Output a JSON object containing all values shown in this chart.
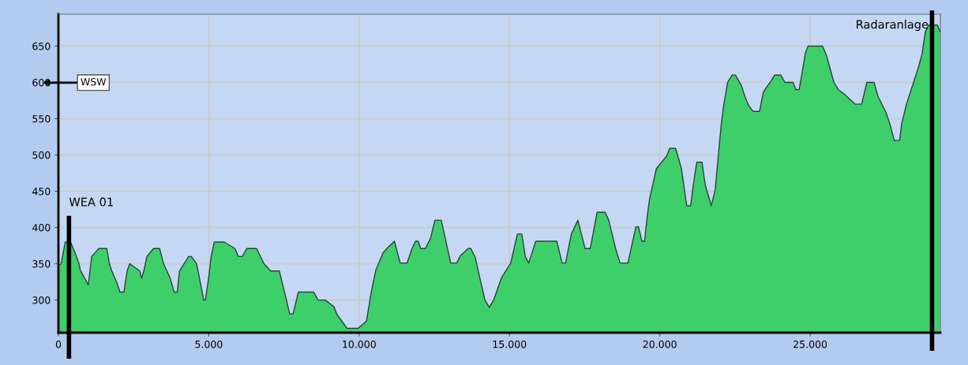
{
  "chart_data": {
    "type": "area",
    "x": [
      0,
      88,
      228,
      404,
      554,
      685,
      729,
      993,
      1107,
      1344,
      1608,
      1696,
      1766,
      1960,
      2047,
      2179,
      2285,
      2372,
      2706,
      2768,
      2838,
      2944,
      3163,
      3365,
      3497,
      3717,
      3849,
      3954,
      4024,
      4332,
      4420,
      4596,
      4833,
      4886,
      4991,
      5079,
      5184,
      5518,
      5870,
      5984,
      6116,
      6265,
      6590,
      6836,
      7056,
      7346,
      7583,
      7689,
      7803,
      7979,
      8488,
      8634,
      8870,
      9159,
      9264,
      9597,
      9965,
      10245,
      10403,
      10560,
      10797,
      10946,
      11173,
      11366,
      11594,
      11760,
      11874,
      11962,
      12049,
      12207,
      12373,
      12522,
      12732,
      13047,
      13249,
      13363,
      13625,
      13713,
      13862,
      14011,
      14186,
      14326,
      14475,
      14738,
      15044,
      15263,
      15412,
      15526,
      15639,
      15876,
      16576,
      16751,
      16865,
      17058,
      17277,
      17513,
      17688,
      17916,
      18178,
      18301,
      18528,
      18677,
      18940,
      19204,
      19291,
      19405,
      19492,
      19596,
      19667,
      19886,
      20018,
      20237,
      20325,
      20526,
      20719,
      20895,
      21026,
      21114,
      21228,
      21404,
      21509,
      21711,
      21842,
      22035,
      22123,
      22254,
      22403,
      22517,
      22719,
      22842,
      22956,
      23105,
      23316,
      23439,
      23544,
      23684,
      23816,
      24026,
      24158,
      24430,
      24526,
      24632,
      24711,
      24842,
      24930,
      25412,
      25544,
      25789,
      25938,
      26158,
      26491,
      26711,
      26886,
      27123,
      27254,
      27517,
      27649,
      27798,
      27974,
      28044,
      28202,
      28588,
      28719,
      28833,
      28947,
      29228,
      29316
    ],
    "series": [
      {
        "color": "#3ecf6a",
        "values": [
          347,
          350,
          380,
          380,
          365,
          350,
          341,
          321,
          360,
          371,
          371,
          350,
          341,
          322,
          311,
          311,
          340,
          350,
          340,
          330,
          340,
          360,
          371,
          371,
          350,
          330,
          311,
          311,
          340,
          360,
          360,
          350,
          300,
          300,
          329,
          360,
          380,
          380,
          371,
          360,
          360,
          371,
          371,
          350,
          340,
          340,
          300,
          281,
          281,
          311,
          311,
          300,
          300,
          291,
          280,
          261,
          261,
          271,
          311,
          342,
          365,
          372,
          381,
          351,
          351,
          371,
          381,
          381,
          371,
          371,
          385,
          410,
          410,
          351,
          351,
          361,
          371,
          371,
          359,
          331,
          300,
          290,
          300,
          331,
          351,
          391,
          391,
          360,
          351,
          381,
          381,
          351,
          351,
          391,
          410,
          371,
          371,
          421,
          421,
          410,
          371,
          351,
          351,
          401,
          401,
          381,
          381,
          420,
          441,
          481,
          488,
          499,
          509,
          509,
          481,
          430,
          430,
          459,
          490,
          490,
          459,
          430,
          452,
          539,
          568,
          600,
          610,
          610,
          595,
          579,
          568,
          560,
          560,
          586,
          593,
          601,
          610,
          610,
          600,
          600,
          590,
          590,
          608,
          641,
          650,
          650,
          637,
          600,
          590,
          583,
          570,
          570,
          600,
          600,
          581,
          559,
          543,
          520,
          520,
          543,
          570,
          619,
          639,
          670,
          679,
          679,
          670
        ]
      }
    ],
    "xlim": [
      0,
      29330
    ],
    "ylim": [
      255,
      694
    ],
    "xticks": [
      0,
      {
        "value": 5000,
        "label": "5.000"
      },
      {
        "value": 10000,
        "label": "10.000"
      },
      {
        "value": 15000,
        "label": "15.000"
      },
      {
        "value": 20000,
        "label": "20.000"
      },
      {
        "value": 25000,
        "label": "25.000"
      }
    ],
    "yticks": [
      300,
      350,
      400,
      450,
      500,
      550,
      600,
      650
    ],
    "grid": true,
    "ref_lines": [
      {
        "axis": "x",
        "value": 351,
        "label": "WEA 01",
        "color": "#000000"
      },
      {
        "axis": "x",
        "value": 29053,
        "label": "Radaranlage",
        "color": "#000000"
      }
    ],
    "annotations": [
      "WSW"
    ]
  }
}
